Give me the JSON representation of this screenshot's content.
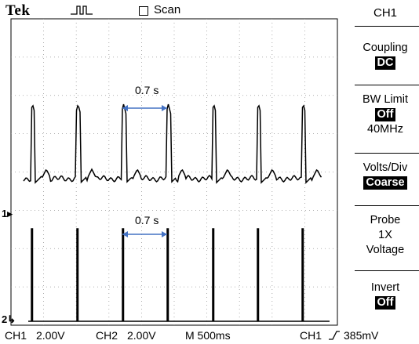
{
  "header": {
    "brand": "Tek",
    "trigger_status_icon": "pulse-waveform-icon",
    "scan_label": "Scan"
  },
  "side_menu": {
    "title": "CH1",
    "items": [
      {
        "label": "Coupling",
        "value": "DC"
      },
      {
        "label": "BW Limit",
        "value": "Off",
        "extra": "40MHz"
      },
      {
        "label": "Volts/Div",
        "value": "Coarse"
      },
      {
        "label": "Probe",
        "value": "1X",
        "extra": "Voltage"
      },
      {
        "label": "Invert",
        "value": "Off"
      }
    ]
  },
  "waveforms": {
    "ch1_marker": "1",
    "ch2_marker": "2",
    "annotation_top": "0.7 s",
    "annotation_bottom": "0.7 s",
    "ch1_color": "#000000",
    "ch2_color": "#000000",
    "annotation_color": "#4472c4"
  },
  "status_bar": {
    "ch1": "CH1",
    "ch1_scale": "2.00V",
    "ch2": "CH2",
    "ch2_scale": "2.00V",
    "timebase": "M 500ms",
    "trigger_source": "CH1",
    "trigger_level": "385mV"
  }
}
